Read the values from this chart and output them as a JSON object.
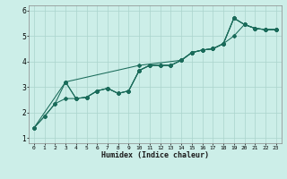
{
  "xlabel": "Humidex (Indice chaleur)",
  "bg_color": "#cceee8",
  "grid_color": "#aad4cc",
  "line_color": "#1a6b5a",
  "xlim": [
    -0.5,
    23.5
  ],
  "ylim": [
    0.8,
    6.2
  ],
  "xticks": [
    0,
    1,
    2,
    3,
    4,
    5,
    6,
    7,
    8,
    9,
    10,
    11,
    12,
    13,
    14,
    15,
    16,
    17,
    18,
    19,
    20,
    21,
    22,
    23
  ],
  "yticks": [
    1,
    2,
    3,
    4,
    5,
    6
  ],
  "series1": [
    [
      0,
      1.4
    ],
    [
      1,
      1.85
    ],
    [
      2,
      2.35
    ],
    [
      3,
      3.2
    ],
    [
      4,
      2.55
    ],
    [
      5,
      2.6
    ],
    [
      6,
      2.85
    ],
    [
      7,
      2.95
    ],
    [
      8,
      2.75
    ],
    [
      9,
      2.85
    ],
    [
      10,
      3.65
    ],
    [
      11,
      3.85
    ],
    [
      12,
      3.85
    ],
    [
      13,
      3.85
    ],
    [
      14,
      4.05
    ],
    [
      15,
      4.35
    ],
    [
      16,
      4.45
    ],
    [
      17,
      4.5
    ],
    [
      18,
      4.7
    ],
    [
      19,
      5.7
    ],
    [
      20,
      5.45
    ],
    [
      21,
      5.3
    ],
    [
      22,
      5.25
    ],
    [
      23,
      5.25
    ]
  ],
  "series2": [
    [
      0,
      1.4
    ],
    [
      1,
      1.85
    ],
    [
      2,
      2.35
    ],
    [
      3,
      2.55
    ],
    [
      4,
      2.55
    ],
    [
      5,
      2.6
    ],
    [
      6,
      2.85
    ],
    [
      7,
      2.95
    ],
    [
      8,
      2.75
    ],
    [
      9,
      2.85
    ],
    [
      10,
      3.65
    ],
    [
      11,
      3.85
    ],
    [
      12,
      3.85
    ],
    [
      13,
      3.85
    ],
    [
      14,
      4.05
    ],
    [
      15,
      4.35
    ],
    [
      16,
      4.45
    ],
    [
      17,
      4.5
    ],
    [
      18,
      4.7
    ],
    [
      19,
      5.0
    ],
    [
      20,
      5.45
    ],
    [
      21,
      5.3
    ],
    [
      22,
      5.25
    ],
    [
      23,
      5.25
    ]
  ],
  "series3": [
    [
      3,
      3.2
    ],
    [
      4,
      2.55
    ],
    [
      5,
      2.6
    ],
    [
      6,
      2.85
    ],
    [
      7,
      2.95
    ],
    [
      8,
      2.75
    ],
    [
      9,
      2.85
    ],
    [
      10,
      3.65
    ],
    [
      11,
      3.85
    ],
    [
      12,
      3.85
    ],
    [
      13,
      3.85
    ],
    [
      14,
      4.05
    ],
    [
      15,
      4.35
    ],
    [
      16,
      4.45
    ],
    [
      17,
      4.5
    ],
    [
      18,
      4.7
    ],
    [
      19,
      5.7
    ],
    [
      20,
      5.45
    ],
    [
      21,
      5.3
    ],
    [
      22,
      5.25
    ],
    [
      23,
      5.25
    ]
  ],
  "series4": [
    [
      0,
      1.4
    ],
    [
      3,
      3.2
    ],
    [
      10,
      3.85
    ],
    [
      14,
      4.05
    ],
    [
      15,
      4.35
    ],
    [
      16,
      4.45
    ],
    [
      17,
      4.5
    ],
    [
      18,
      4.7
    ],
    [
      19,
      5.7
    ],
    [
      20,
      5.45
    ],
    [
      21,
      5.3
    ],
    [
      22,
      5.25
    ],
    [
      23,
      5.25
    ]
  ]
}
